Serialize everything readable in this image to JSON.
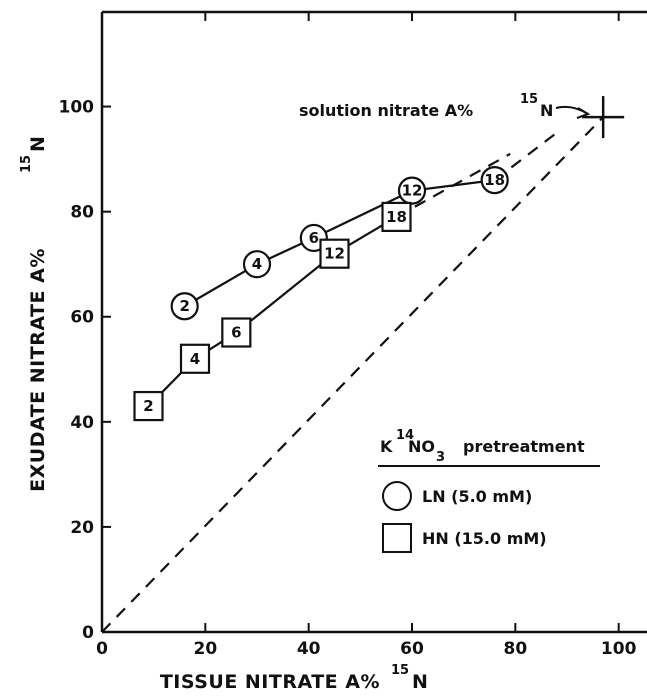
{
  "chart_data": {
    "type": "line",
    "xlabel": "TISSUE NITRATE A%",
    "xlabel_sup": "15",
    "xlabel_suffix": "N",
    "ylabel": "EXUDATE NITRATE A%",
    "ylabel_sup": "15",
    "ylabel_suffix": "N",
    "xlim": [
      0,
      108
    ],
    "ylim": [
      0,
      118
    ],
    "xticks": [
      0,
      20,
      40,
      60,
      80,
      100
    ],
    "yticks": [
      0,
      20,
      40,
      60,
      80,
      100
    ],
    "grid": false,
    "series": [
      {
        "marker": "circle",
        "line": "solid",
        "points": [
          {
            "x": 16,
            "y": 62,
            "label": "2"
          },
          {
            "x": 30,
            "y": 70,
            "label": "4"
          },
          {
            "x": 41,
            "y": 75,
            "label": "6"
          },
          {
            "x": 60,
            "y": 84,
            "label": "12"
          },
          {
            "x": 76,
            "y": 86,
            "label": "18"
          }
        ]
      },
      {
        "marker": "square",
        "line": "solid",
        "points": [
          {
            "x": 9,
            "y": 43,
            "label": "2"
          },
          {
            "x": 18,
            "y": 52,
            "label": "4"
          },
          {
            "x": 26,
            "y": 57,
            "label": "6"
          },
          {
            "x": 45,
            "y": 72,
            "label": "12"
          },
          {
            "x": 57,
            "y": 79,
            "label": "18"
          }
        ]
      }
    ],
    "extrapolations": [
      {
        "line": "dashed",
        "points": [
          {
            "x": 76,
            "y": 86
          },
          {
            "x": 88,
            "y": 95
          }
        ]
      },
      {
        "line": "dashed",
        "points": [
          {
            "x": 57,
            "y": 79
          },
          {
            "x": 79,
            "y": 91
          }
        ]
      },
      {
        "line": "dashed",
        "points": [
          {
            "x": 0,
            "y": 0
          },
          {
            "x": 97,
            "y": 98
          }
        ]
      }
    ],
    "reference_point": {
      "x": 97,
      "y": 98,
      "marker": "cross"
    },
    "annotation": {
      "text": "solution nitrate A%",
      "sup": "15",
      "suffix": "N"
    },
    "legend": {
      "title_prefix": "K",
      "title_sup": "14",
      "title_mid": "NO",
      "title_sub": "3",
      "title_suffix": "pretreatment",
      "placement": "lower-right",
      "entries": [
        {
          "marker": "circle",
          "label": "LN (5.0 mM)"
        },
        {
          "marker": "square",
          "label": "HN (15.0 mM)"
        }
      ]
    }
  }
}
